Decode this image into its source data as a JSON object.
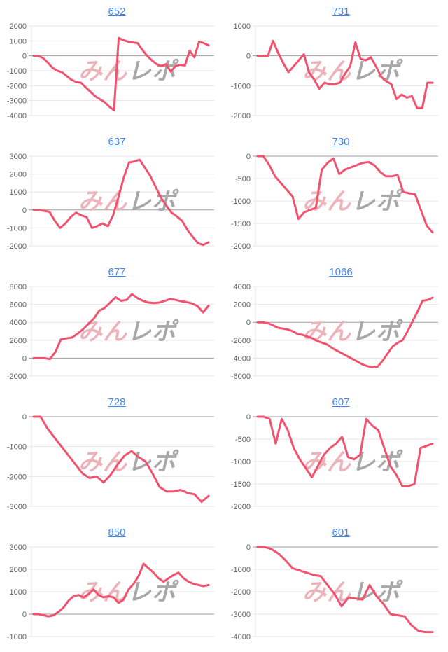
{
  "colors": {
    "series_line": "#f1536e",
    "gridline": "#e6e6e6",
    "zero_line": "#9e9e9e",
    "axis_label": "#616161",
    "title_link": "#4285f4",
    "watermark_pink": "#edb3bb",
    "watermark_gray": "#a8a8a8",
    "background": "#ffffff"
  },
  "watermark": {
    "pink_text": "みん",
    "gray_text": "レポ"
  },
  "chart_data": [
    {
      "type": "line",
      "title": "652",
      "xlabel": "",
      "ylabel": "",
      "ylim": [
        -4000,
        2000
      ],
      "ytick_step": 1000,
      "grid": true,
      "legend": false,
      "values": [
        0,
        0,
        -150,
        -450,
        -800,
        -1000,
        -1100,
        -1350,
        -1600,
        -1750,
        -1800,
        -2100,
        -2400,
        -2700,
        -2900,
        -3100,
        -3400,
        -3650,
        1200,
        1050,
        950,
        900,
        850,
        400,
        0,
        -300,
        -550,
        -700,
        -550,
        -1050,
        -700,
        -600,
        -650,
        350,
        -100,
        950,
        850,
        700
      ]
    },
    {
      "type": "line",
      "title": "731",
      "xlabel": "",
      "ylabel": "",
      "ylim": [
        -2000,
        1000
      ],
      "ytick_step": 1000,
      "grid": true,
      "legend": false,
      "values": [
        0,
        0,
        0,
        500,
        100,
        -250,
        -550,
        -350,
        -150,
        50,
        -550,
        -800,
        -1100,
        -900,
        -950,
        -950,
        -900,
        -600,
        -350,
        450,
        -100,
        -150,
        -50,
        -350,
        -700,
        -850,
        -950,
        -1450,
        -1300,
        -1400,
        -1350,
        -1750,
        -1750,
        -900,
        -900
      ]
    },
    {
      "type": "line",
      "title": "637",
      "xlabel": "",
      "ylabel": "",
      "ylim": [
        -2000,
        3000
      ],
      "ytick_step": 1000,
      "grid": true,
      "legend": false,
      "values": [
        0,
        0,
        -50,
        -100,
        -600,
        -1000,
        -750,
        -400,
        -150,
        -300,
        -400,
        -1000,
        -900,
        -750,
        -900,
        -300,
        700,
        1800,
        2650,
        2700,
        2800,
        2350,
        1900,
        1300,
        700,
        250,
        -150,
        -350,
        -600,
        -1100,
        -1500,
        -1850,
        -1950,
        -1800
      ]
    },
    {
      "type": "line",
      "title": "730",
      "xlabel": "",
      "ylabel": "",
      "ylim": [
        -2000,
        0
      ],
      "ytick_step": 500,
      "grid": true,
      "legend": false,
      "values": [
        0,
        0,
        -200,
        -450,
        -600,
        -750,
        -900,
        -1400,
        -1250,
        -1200,
        -1150,
        -300,
        -150,
        -50,
        -400,
        -300,
        -250,
        -200,
        -150,
        -130,
        -200,
        -350,
        -450,
        -450,
        -420,
        -800,
        -830,
        -850,
        -1200,
        -1550,
        -1700
      ]
    },
    {
      "type": "line",
      "title": "677",
      "xlabel": "",
      "ylabel": "",
      "ylim": [
        -2000,
        8000
      ],
      "ytick_step": 2000,
      "grid": true,
      "legend": false,
      "values": [
        0,
        0,
        0,
        -100,
        700,
        2100,
        2200,
        2300,
        2700,
        3200,
        3800,
        4400,
        5300,
        5600,
        6200,
        6800,
        6400,
        6500,
        7150,
        6700,
        6400,
        6200,
        6150,
        6200,
        6400,
        6600,
        6500,
        6350,
        6250,
        6100,
        5800,
        5100,
        5850
      ]
    },
    {
      "type": "line",
      "title": "1066",
      "xlabel": "",
      "ylabel": "",
      "ylim": [
        -6000,
        4000
      ],
      "ytick_step": 2000,
      "grid": true,
      "legend": false,
      "values": [
        0,
        0,
        -100,
        -300,
        -600,
        -700,
        -800,
        -1000,
        -1300,
        -1400,
        -1600,
        -1800,
        -2100,
        -2300,
        -2500,
        -2900,
        -3200,
        -3500,
        -3800,
        -4100,
        -4400,
        -4700,
        -4900,
        -5000,
        -4950,
        -4300,
        -3500,
        -2700,
        -2300,
        -2000,
        -1000,
        100,
        1200,
        2400,
        2500,
        2750
      ]
    },
    {
      "type": "line",
      "title": "728",
      "xlabel": "",
      "ylabel": "",
      "ylim": [
        -3000,
        0
      ],
      "ytick_step": 1000,
      "grid": true,
      "legend": false,
      "values": [
        0,
        0,
        -400,
        -700,
        -1000,
        -1300,
        -1600,
        -1900,
        -2050,
        -2000,
        -2200,
        -1950,
        -1600,
        -1300,
        -1150,
        -1350,
        -1500,
        -1900,
        -2350,
        -2500,
        -2500,
        -2450,
        -2550,
        -2600,
        -2850,
        -2650
      ]
    },
    {
      "type": "line",
      "title": "607",
      "xlabel": "",
      "ylabel": "",
      "ylim": [
        -2000,
        0
      ],
      "ytick_step": 500,
      "grid": true,
      "legend": false,
      "values": [
        0,
        0,
        -50,
        -600,
        -50,
        -300,
        -700,
        -950,
        -1150,
        -1350,
        -1100,
        -850,
        -700,
        -600,
        -450,
        -900,
        -950,
        -850,
        -50,
        -200,
        -300,
        -700,
        -1100,
        -1300,
        -1550,
        -1550,
        -1500,
        -700,
        -650,
        -600
      ]
    },
    {
      "type": "line",
      "title": "850",
      "xlabel": "",
      "ylabel": "",
      "ylim": [
        -1000,
        3000
      ],
      "ytick_step": 1000,
      "grid": true,
      "legend": false,
      "values": [
        0,
        0,
        -50,
        -100,
        -50,
        100,
        300,
        600,
        800,
        850,
        750,
        900,
        1100,
        850,
        750,
        800,
        750,
        500,
        650,
        1100,
        1350,
        1700,
        2250,
        2050,
        1850,
        1600,
        1450,
        1600,
        1750,
        1850,
        1600,
        1450,
        1350,
        1300,
        1250,
        1300
      ]
    },
    {
      "type": "line",
      "title": "601",
      "xlabel": "",
      "ylabel": "",
      "ylim": [
        -4000,
        0
      ],
      "ytick_step": 1000,
      "grid": true,
      "legend": false,
      "values": [
        0,
        0,
        -100,
        -300,
        -600,
        -950,
        -1050,
        -1150,
        -1250,
        -1300,
        -1700,
        -2100,
        -2650,
        -2250,
        -2300,
        -2350,
        -1700,
        -2200,
        -2550,
        -3000,
        -3050,
        -3100,
        -3500,
        -3750,
        -3800,
        -3800
      ]
    }
  ]
}
